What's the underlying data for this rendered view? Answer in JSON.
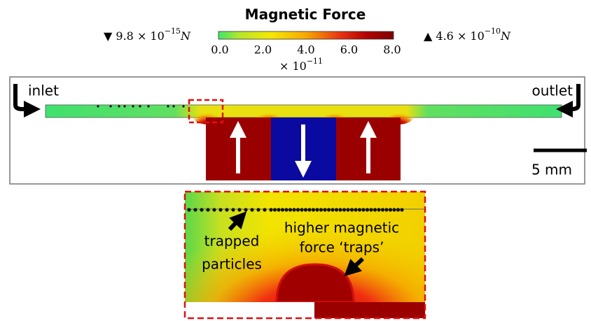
{
  "title": "Magnetic Force",
  "colorbar": {
    "min": {
      "prefix": "▼",
      "mantissa": "9.8 × 10",
      "exponent": "−15",
      "unit": "N"
    },
    "max": {
      "prefix": "▲",
      "mantissa": "4.6 × 10",
      "exponent": "−10",
      "unit": "N"
    },
    "ticks": [
      "0.0",
      "2.0",
      "4.0",
      "6.0",
      "8.0"
    ],
    "multiplier": {
      "base": "× 10",
      "exponent": "−11"
    }
  },
  "labels": {
    "inlet": "inlet",
    "outlet": "outlet",
    "scale": "5 mm"
  },
  "zoom": {
    "trapped": [
      "trapped",
      "particles"
    ],
    "traps": [
      "higher magnetic",
      "force ‘traps’"
    ]
  }
}
